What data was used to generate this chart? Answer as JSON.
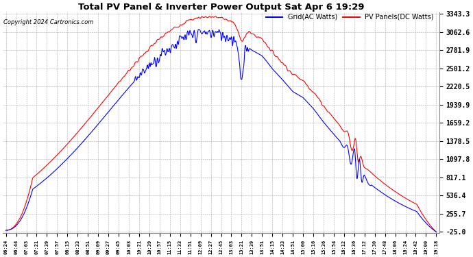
{
  "title": "Total PV Panel & Inverter Power Output Sat Apr 6 19:29",
  "copyright": "Copyright 2024 Cartronics.com",
  "legend_ac": "Grid(AC Watts)",
  "legend_dc": "PV Panels(DC Watts)",
  "color_ac": "blue",
  "color_dc": "red",
  "yticks": [
    -25.0,
    255.7,
    536.4,
    817.1,
    1097.8,
    1378.5,
    1659.2,
    1939.9,
    2220.5,
    2501.2,
    2781.9,
    3062.6,
    3343.3
  ],
  "ymin": -25.0,
  "ymax": 3343.3,
  "background_color": "#ffffff",
  "grid_color": "#aaaaaa",
  "x_labels": [
    "06:24",
    "06:44",
    "07:03",
    "07:21",
    "07:39",
    "07:57",
    "08:15",
    "08:33",
    "08:51",
    "09:09",
    "09:27",
    "09:45",
    "10:03",
    "10:21",
    "10:39",
    "10:57",
    "11:15",
    "11:33",
    "11:51",
    "12:09",
    "12:27",
    "12:45",
    "13:03",
    "13:21",
    "13:39",
    "13:51",
    "14:15",
    "14:33",
    "14:51",
    "15:00",
    "15:16",
    "15:36",
    "15:54",
    "16:12",
    "16:36",
    "17:12",
    "17:30",
    "17:48",
    "18:06",
    "18:24",
    "18:42",
    "19:00",
    "19:18"
  ]
}
